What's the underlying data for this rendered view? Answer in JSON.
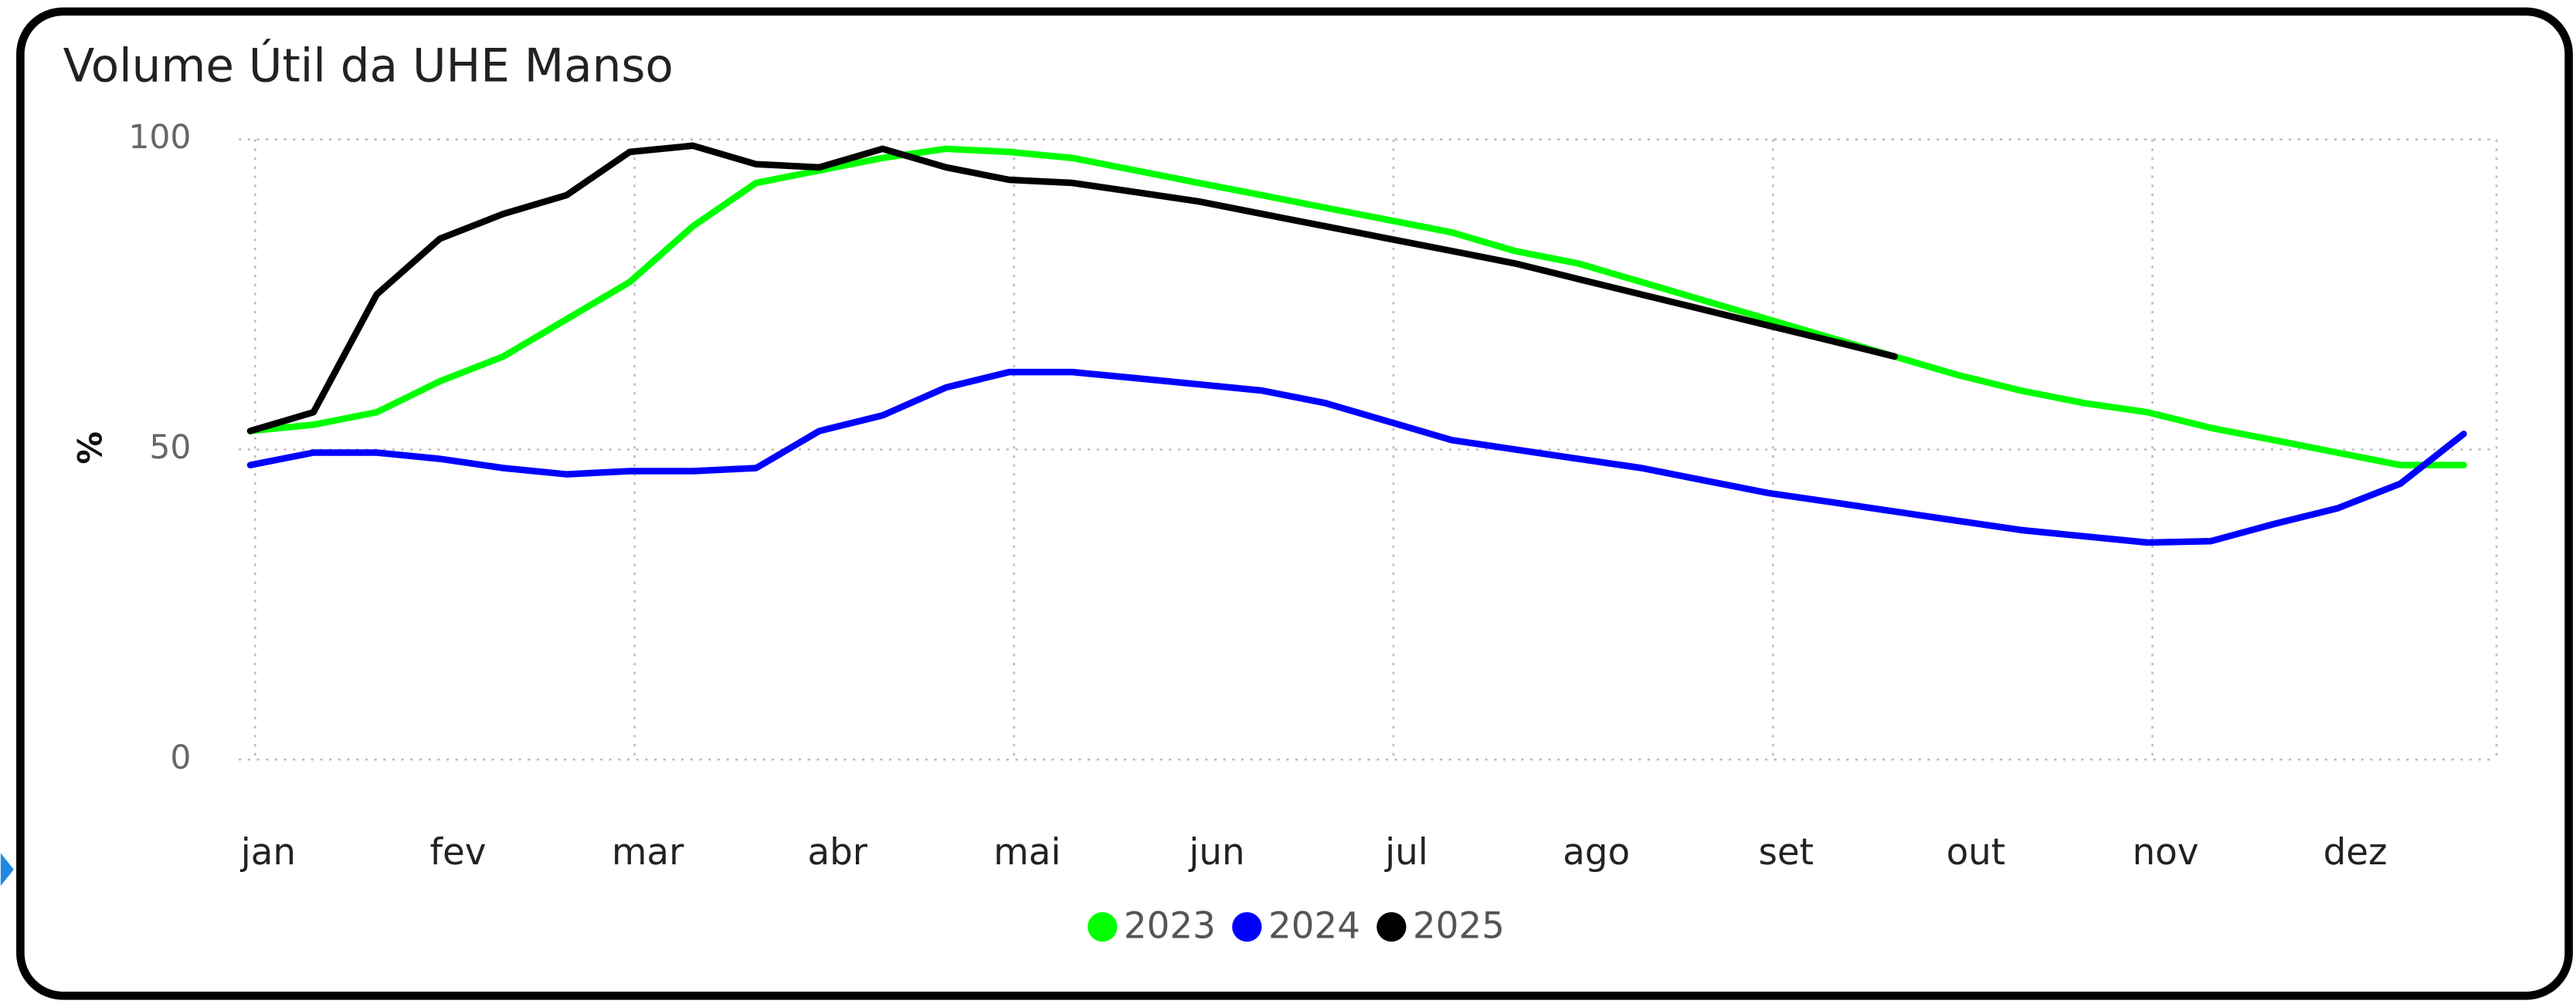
{
  "chart_data": {
    "type": "line",
    "title": "Volume Útil da UHE Manso",
    "y_label": "%",
    "categories": [
      "jan",
      null,
      null,
      "fev",
      null,
      null,
      "mar",
      null,
      null,
      "abr",
      null,
      null,
      "mai",
      null,
      null,
      "jun",
      null,
      null,
      "jul",
      null,
      null,
      "ago",
      null,
      null,
      "set",
      null,
      null,
      "out",
      null,
      null,
      "nov",
      null,
      null,
      "dez",
      null,
      null
    ],
    "series": [
      {
        "name": "2023",
        "color": "#00ff00",
        "values": [
          53,
          54,
          56,
          61,
          65,
          71,
          77,
          86,
          93,
          95,
          97,
          98.5,
          98,
          97,
          95,
          93,
          91,
          89,
          87,
          85,
          82,
          80,
          77,
          74,
          71,
          68,
          65,
          62,
          59.5,
          57.5,
          56,
          53.5,
          51.5,
          49.5,
          47.5,
          47.5
        ]
      },
      {
        "name": "2024",
        "color": "#0000ff",
        "values": [
          47.5,
          49.5,
          49.5,
          48.5,
          47,
          46,
          46.5,
          46.5,
          47,
          53,
          55.5,
          60,
          62.5,
          62.5,
          61.5,
          60.5,
          59.5,
          57.5,
          54.5,
          51.5,
          50,
          48.5,
          47,
          45,
          43,
          41.5,
          40,
          38.5,
          37,
          36,
          35,
          35.2,
          38,
          40.5,
          44.5,
          52.5
        ]
      },
      {
        "name": "2025",
        "color": "#000000",
        "values": [
          53,
          56,
          75,
          84,
          88,
          91,
          98,
          99,
          96,
          95.5,
          98.5,
          95.5,
          93.5,
          93,
          91.5,
          90,
          88,
          86,
          84,
          82,
          80,
          77.5,
          75,
          72.5,
          70,
          67.5,
          65,
          null,
          null,
          null,
          null,
          null,
          null,
          null,
          null,
          null
        ]
      }
    ],
    "ylim": [
      0,
      100
    ],
    "yticks": [
      0,
      50,
      100
    ],
    "grid": true
  }
}
